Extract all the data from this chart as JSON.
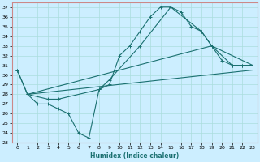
{
  "title": "",
  "xlabel": "Humidex (Indice chaleur)",
  "bg_color": "#cceeff",
  "line_color": "#1a7070",
  "grid_color": "#aadddd",
  "border_color": "#cc8888",
  "xlim": [
    -0.5,
    23.5
  ],
  "ylim": [
    23,
    37.5
  ],
  "xticks": [
    0,
    1,
    2,
    3,
    4,
    5,
    6,
    7,
    8,
    9,
    10,
    11,
    12,
    13,
    14,
    15,
    16,
    17,
    18,
    19,
    20,
    21,
    22,
    23
  ],
  "yticks": [
    23,
    24,
    25,
    26,
    27,
    28,
    29,
    30,
    31,
    32,
    33,
    34,
    35,
    36,
    37
  ],
  "curve1": {
    "x": [
      0,
      1,
      2,
      3,
      4,
      5,
      6,
      7,
      8,
      9,
      10,
      11,
      12,
      13,
      14,
      15,
      16,
      17,
      18,
      19,
      20,
      21,
      22,
      23
    ],
    "y": [
      30.5,
      28,
      27,
      27,
      26.5,
      26,
      24,
      23.5,
      28.5,
      29,
      32,
      33,
      34.5,
      36,
      37,
      37,
      36.5,
      35,
      34.5,
      33,
      31.5,
      31,
      31,
      31
    ]
  },
  "curve2": {
    "x": [
      0,
      1,
      3,
      4,
      8,
      9,
      12,
      15,
      18,
      19,
      21,
      22,
      23
    ],
    "y": [
      30.5,
      28,
      27.5,
      27.5,
      28.5,
      29.5,
      33,
      37,
      34.5,
      33,
      31,
      31,
      31
    ]
  },
  "line3": {
    "x": [
      1,
      23
    ],
    "y": [
      28,
      30.5
    ]
  },
  "line4": {
    "x": [
      1,
      19
    ],
    "y": [
      28,
      33
    ]
  }
}
